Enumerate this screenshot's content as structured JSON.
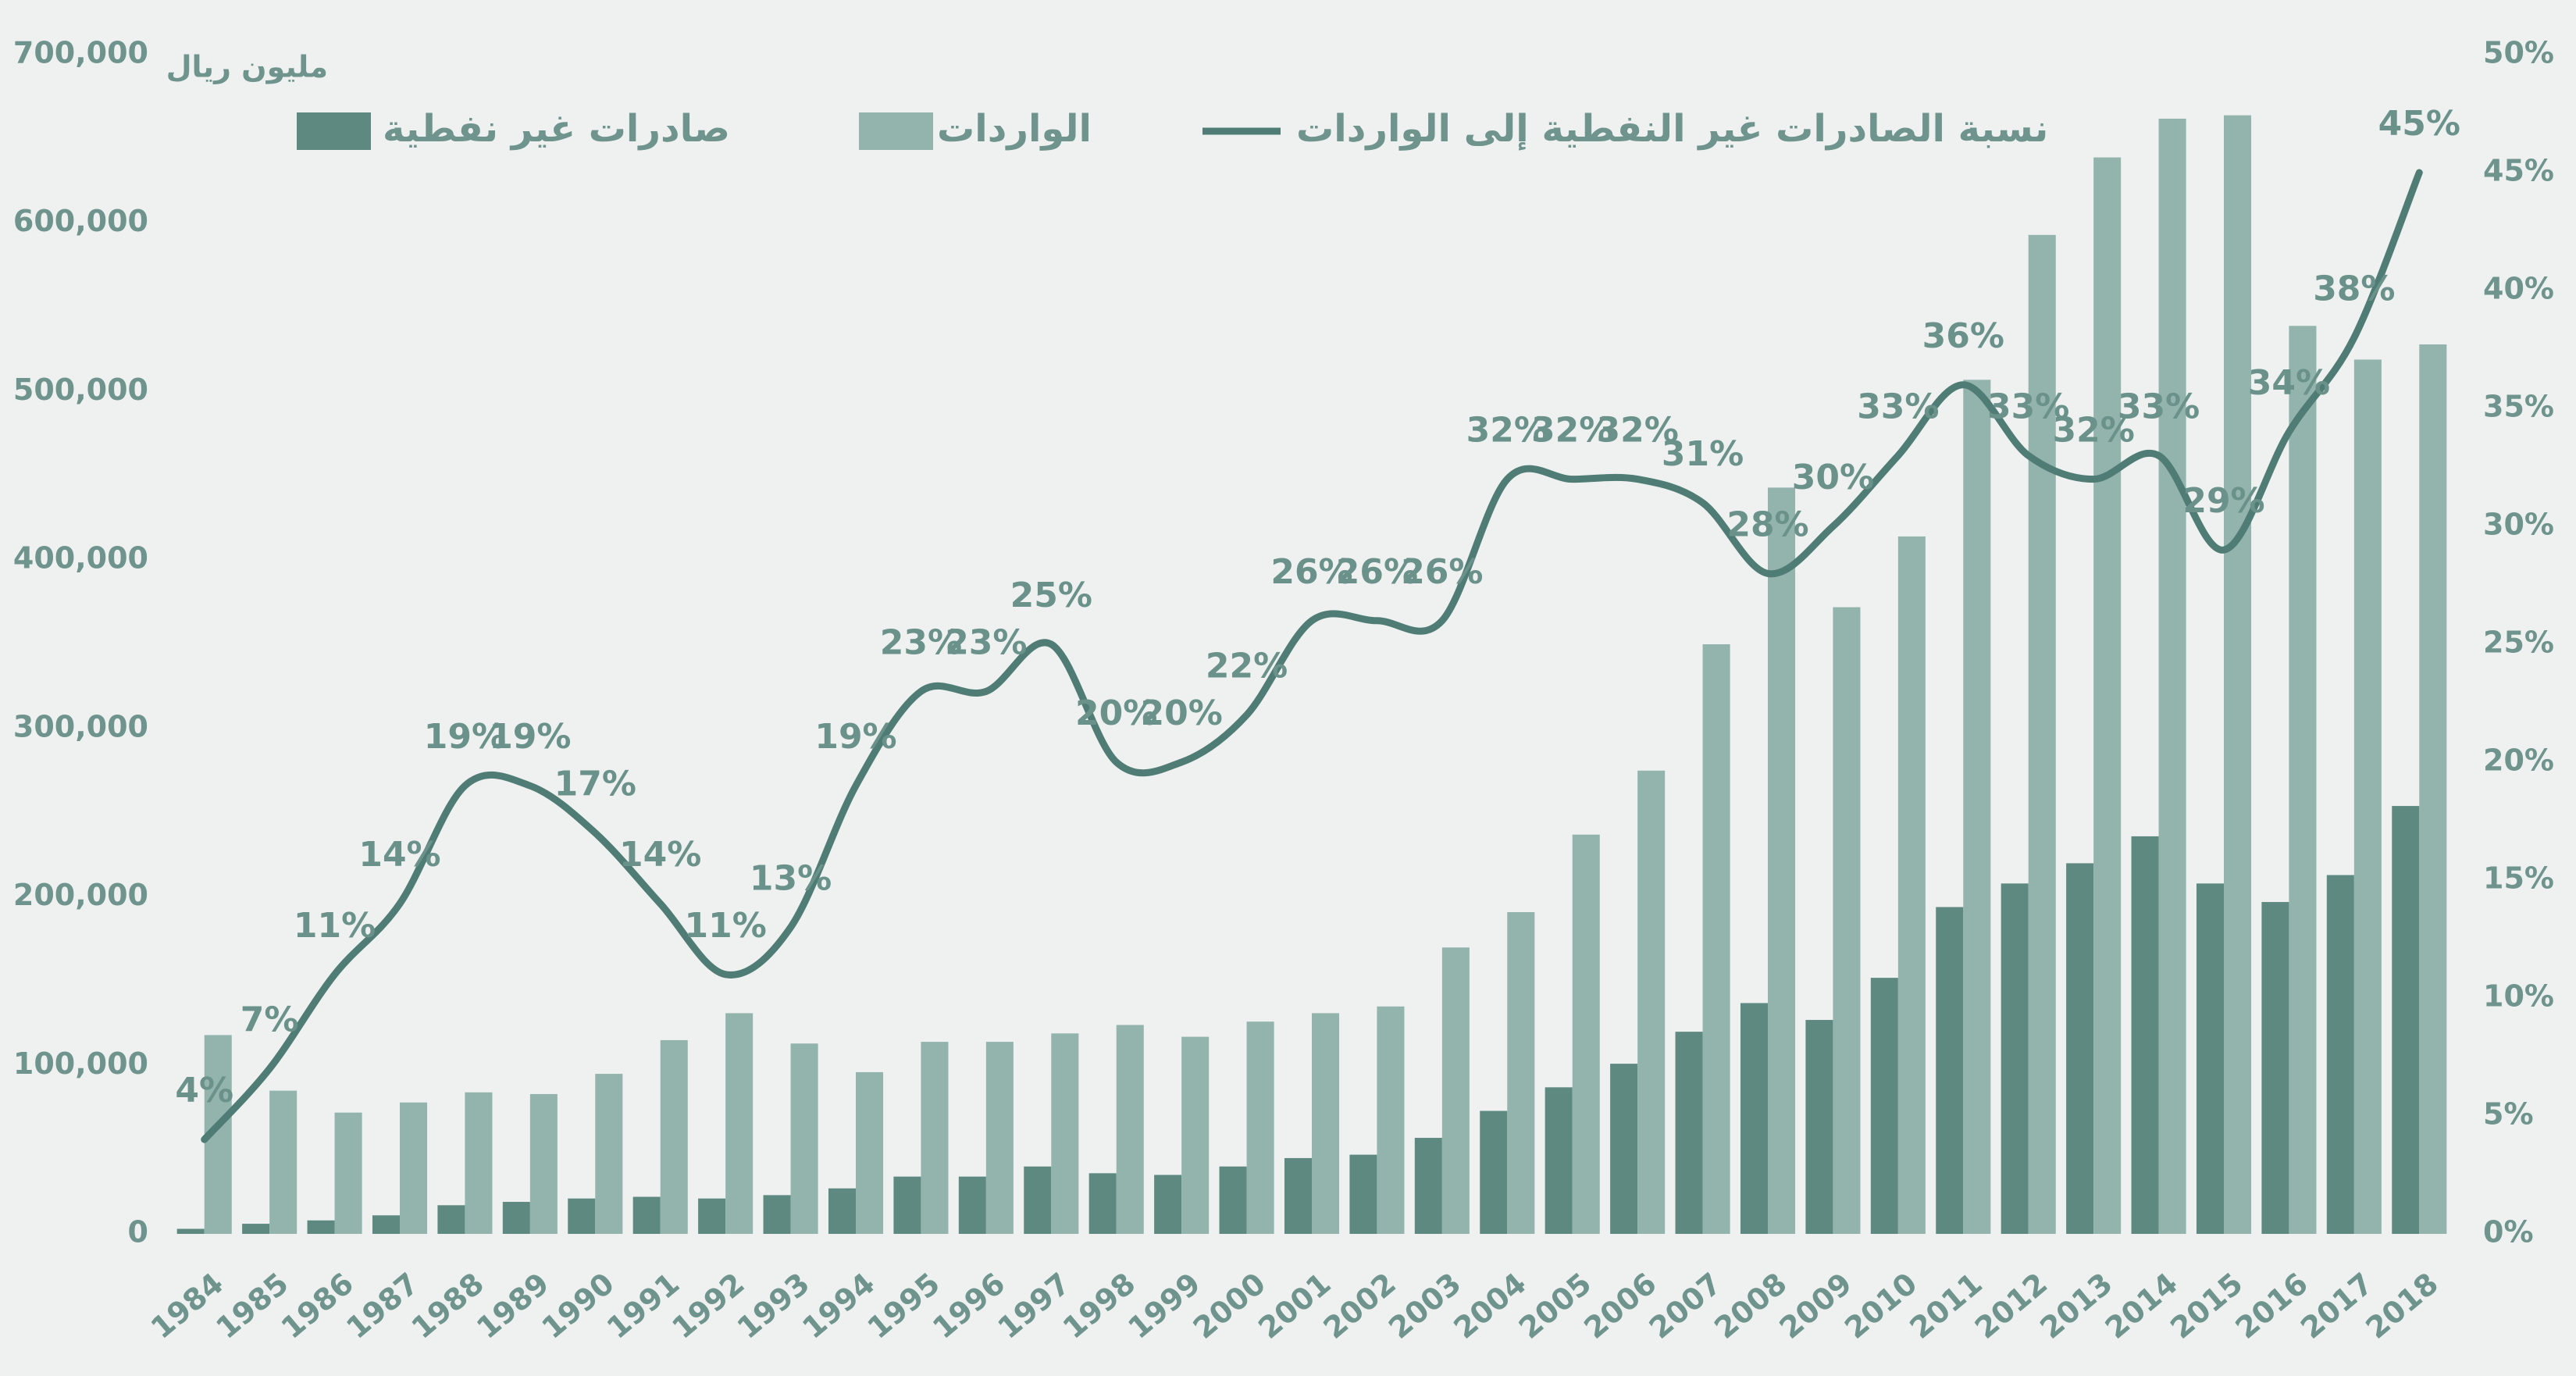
{
  "chart_data": {
    "type": "bar_line",
    "y_axis_label": "مليون ريال",
    "categories": [
      "1984",
      "1985",
      "1986",
      "1987",
      "1988",
      "1989",
      "1990",
      "1991",
      "1992",
      "1993",
      "1994",
      "1995",
      "1996",
      "1997",
      "1998",
      "1999",
      "2000",
      "2001",
      "2002",
      "2003",
      "2004",
      "2005",
      "2006",
      "2007",
      "2008",
      "2009",
      "2010",
      "2011",
      "2012",
      "2013",
      "2014",
      "2015",
      "2016",
      "2017",
      "2018"
    ],
    "series": [
      {
        "name": "صادرات غير نفطية",
        "type": "bar",
        "color": "#5e8981",
        "values": [
          3000,
          6000,
          8000,
          11000,
          17000,
          19000,
          21000,
          22000,
          21000,
          23000,
          27000,
          34000,
          34000,
          40000,
          36000,
          35000,
          40000,
          45000,
          47000,
          57000,
          73000,
          87000,
          101000,
          120000,
          137000,
          127000,
          152000,
          194000,
          208000,
          220000,
          236000,
          208000,
          197000,
          213000,
          254000
        ]
      },
      {
        "name": "الواردات",
        "type": "bar",
        "color": "#93b3ad",
        "values": [
          118000,
          85000,
          72000,
          78000,
          84000,
          83000,
          95000,
          115000,
          131000,
          113000,
          96000,
          114000,
          114000,
          119000,
          124000,
          117000,
          126000,
          131000,
          135000,
          170000,
          191000,
          237000,
          275000,
          350000,
          443000,
          372000,
          414000,
          507000,
          593000,
          639000,
          662000,
          664000,
          539000,
          519000,
          528000
        ]
      },
      {
        "name": "نسبة الصادرات غير النفطية إلى الواردات",
        "type": "line",
        "axis": "y2",
        "color": "#4f7c74",
        "values": [
          4,
          7,
          11,
          14,
          19,
          19,
          17,
          14,
          11,
          13,
          19,
          23,
          23,
          25,
          20,
          20,
          22,
          26,
          26,
          26,
          32,
          32,
          32,
          31,
          28,
          30,
          33,
          36,
          33,
          32,
          33,
          29,
          34,
          38,
          45
        ],
        "value_labels": [
          "4%",
          "7%",
          "11%",
          "14%",
          "19%",
          "19%",
          "17%",
          "14%",
          "11%",
          "13%",
          "19%",
          "23%",
          "23%",
          "25%",
          "20%",
          "20%",
          "22%",
          "26%",
          "26%",
          "26%",
          "32%",
          "32%",
          "32%",
          "31%",
          "28%",
          "30%",
          "33%",
          "36%",
          "33%",
          "32%",
          "33%",
          "29%",
          "34%",
          "38%",
          "45%"
        ]
      }
    ],
    "ylim": [
      0,
      700000
    ],
    "yticks": [
      0,
      {
        "value": 100000,
        "label": "100,000"
      },
      {
        "value": 200000,
        "label": "200,000"
      },
      {
        "value": 300000,
        "label": "300,000"
      },
      {
        "value": 400000,
        "label": "400,000"
      },
      {
        "value": 500000,
        "label": "500,000"
      },
      {
        "value": 600000,
        "label": "600,000"
      },
      {
        "value": 700000,
        "label": "700,000"
      }
    ],
    "y2lim": [
      0,
      50
    ],
    "y2ticks": [
      {
        "value": 0,
        "label": "0%"
      },
      {
        "value": 5,
        "label": "5%"
      },
      {
        "value": 10,
        "label": "10%"
      },
      {
        "value": 15,
        "label": "15%"
      },
      {
        "value": 20,
        "label": "20%"
      },
      {
        "value": 25,
        "label": "25%"
      },
      {
        "value": 30,
        "label": "30%"
      },
      {
        "value": 35,
        "label": "35%"
      },
      {
        "value": 40,
        "label": "40%"
      },
      {
        "value": 45,
        "label": "45%"
      },
      {
        "value": 50,
        "label": "50%"
      }
    ],
    "grid": false
  }
}
